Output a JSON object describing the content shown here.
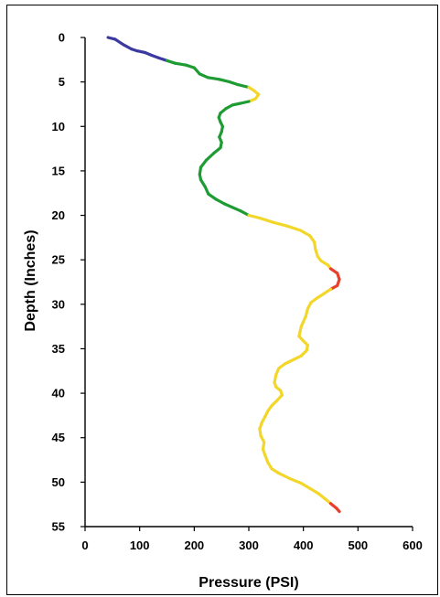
{
  "chart_data": {
    "type": "line",
    "title": "",
    "xlabel": "Pressure (PSI)",
    "ylabel": "Depth (Inches)",
    "xlim": [
      0,
      600
    ],
    "ylim": [
      0,
      55
    ],
    "y_inverted": true,
    "grid": false,
    "legend": "none",
    "x_ticks": [
      "0",
      "100",
      "200",
      "300",
      "400",
      "500",
      "600"
    ],
    "y_ticks": [
      "0",
      "5",
      "10",
      "15",
      "20",
      "25",
      "30",
      "35",
      "40",
      "45",
      "50",
      "55"
    ],
    "color_bands": [
      {
        "range": "0-150 PSI",
        "color": "#3a3aa0"
      },
      {
        "range": "150-300 PSI",
        "color": "#1e9c33"
      },
      {
        "range": "300-450 PSI",
        "color": "#f2d72a"
      },
      {
        "range": "450+ PSI",
        "color": "#e8402a"
      }
    ],
    "series": [
      {
        "points": [
          [
            42,
            0
          ],
          [
            55,
            0.2
          ],
          [
            70,
            0.8
          ],
          [
            85,
            1.3
          ],
          [
            95,
            1.5
          ],
          [
            110,
            1.7
          ],
          [
            122,
            2.0
          ],
          [
            135,
            2.3
          ],
          [
            150,
            2.6
          ],
          [
            165,
            2.9
          ],
          [
            185,
            3.1
          ],
          [
            200,
            3.4
          ],
          [
            210,
            4.1
          ],
          [
            225,
            4.5
          ],
          [
            245,
            4.7
          ],
          [
            265,
            5.0
          ],
          [
            280,
            5.3
          ],
          [
            300,
            5.6
          ],
          [
            310,
            6.0
          ],
          [
            318,
            6.4
          ],
          [
            312,
            6.9
          ],
          [
            300,
            7.2
          ],
          [
            285,
            7.4
          ],
          [
            270,
            7.6
          ],
          [
            258,
            8.0
          ],
          [
            248,
            8.5
          ],
          [
            245,
            9.0
          ],
          [
            248,
            9.5
          ],
          [
            252,
            10.0
          ],
          [
            250,
            10.6
          ],
          [
            246,
            11.2
          ],
          [
            250,
            11.8
          ],
          [
            248,
            12.4
          ],
          [
            236,
            13.0
          ],
          [
            222,
            13.8
          ],
          [
            212,
            14.6
          ],
          [
            210,
            15.4
          ],
          [
            212,
            16.0
          ],
          [
            220,
            16.8
          ],
          [
            226,
            17.6
          ],
          [
            240,
            18.2
          ],
          [
            255,
            18.7
          ],
          [
            270,
            19.1
          ],
          [
            285,
            19.5
          ],
          [
            300,
            20.0
          ],
          [
            320,
            20.3
          ],
          [
            345,
            20.8
          ],
          [
            370,
            21.2
          ],
          [
            395,
            21.7
          ],
          [
            412,
            22.3
          ],
          [
            420,
            23.0
          ],
          [
            422,
            23.8
          ],
          [
            426,
            24.6
          ],
          [
            432,
            25.1
          ],
          [
            445,
            25.6
          ],
          [
            450,
            26.0
          ],
          [
            462,
            26.5
          ],
          [
            466,
            27.2
          ],
          [
            462,
            27.9
          ],
          [
            450,
            28.3
          ],
          [
            438,
            28.8
          ],
          [
            425,
            29.3
          ],
          [
            414,
            29.8
          ],
          [
            408,
            30.5
          ],
          [
            404,
            31.4
          ],
          [
            396,
            32.5
          ],
          [
            392,
            33.6
          ],
          [
            398,
            34.0
          ],
          [
            408,
            34.6
          ],
          [
            406,
            35.2
          ],
          [
            396,
            35.8
          ],
          [
            383,
            36.2
          ],
          [
            366,
            36.7
          ],
          [
            355,
            37.2
          ],
          [
            350,
            37.9
          ],
          [
            347,
            38.8
          ],
          [
            350,
            39.3
          ],
          [
            358,
            39.7
          ],
          [
            361,
            40.2
          ],
          [
            352,
            40.8
          ],
          [
            342,
            41.4
          ],
          [
            335,
            42.0
          ],
          [
            330,
            42.6
          ],
          [
            324,
            43.3
          ],
          [
            320,
            44.0
          ],
          [
            322,
            44.8
          ],
          [
            328,
            45.5
          ],
          [
            326,
            46.3
          ],
          [
            330,
            47.0
          ],
          [
            335,
            47.8
          ],
          [
            342,
            48.5
          ],
          [
            355,
            49.0
          ],
          [
            375,
            49.6
          ],
          [
            395,
            50.1
          ],
          [
            412,
            50.7
          ],
          [
            428,
            51.3
          ],
          [
            440,
            51.9
          ],
          [
            450,
            52.4
          ],
          [
            460,
            52.9
          ],
          [
            466,
            53.3
          ]
        ]
      }
    ]
  }
}
